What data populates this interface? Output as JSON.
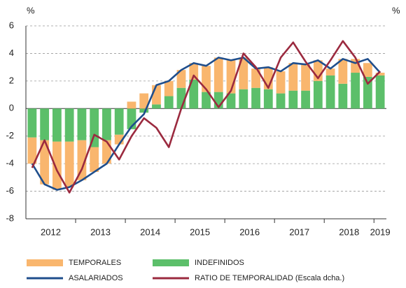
{
  "chart_data": {
    "type": "bar",
    "y_unit_label": "%",
    "y2_unit_label": "%",
    "categories": [
      "2012",
      null,
      null,
      null,
      "2013",
      null,
      null,
      null,
      "2014",
      null,
      null,
      null,
      "2015",
      null,
      null,
      null,
      "2016",
      null,
      null,
      null,
      "2017",
      null,
      null,
      null,
      "2018",
      null,
      null,
      null,
      "2019"
    ],
    "series": [
      {
        "name": "INDEFINIDOS",
        "type": "bar",
        "color": "#5cbf6a",
        "values": [
          -2.1,
          -2.3,
          -2.4,
          -2.4,
          -2.3,
          -2.8,
          -2.3,
          -1.9,
          -1.5,
          -0.3,
          0.3,
          0.9,
          1.5,
          2.1,
          1.2,
          1.2,
          1.1,
          1.4,
          1.5,
          1.4,
          1.1,
          1.3,
          1.3,
          2.0,
          2.4,
          1.8,
          2.6,
          2.3,
          2.4
        ]
      },
      {
        "name": "TEMPORALES",
        "type": "bar",
        "color": "#f9b66e",
        "values": [
          -1.9,
          -3.2,
          -3.5,
          -3.3,
          -2.9,
          -1.8,
          -1.7,
          -0.7,
          0.5,
          1.1,
          1.4,
          1.1,
          1.3,
          1.2,
          1.9,
          2.5,
          2.4,
          2.3,
          1.4,
          1.6,
          1.6,
          2.0,
          1.9,
          1.5,
          0.5,
          1.8,
          1.0,
          1.0,
          0.2
        ]
      },
      {
        "name": "ASALARIADOS",
        "type": "line",
        "color": "#1f4e8c",
        "values": [
          -4.0,
          -5.5,
          -5.9,
          -5.7,
          -5.2,
          -4.6,
          -4.0,
          -2.6,
          -1.3,
          -0.4,
          1.7,
          2.0,
          2.8,
          3.3,
          3.1,
          3.7,
          3.5,
          3.7,
          2.9,
          3.0,
          2.7,
          3.3,
          3.2,
          3.5,
          2.9,
          3.6,
          3.3,
          3.6,
          2.6
        ]
      },
      {
        "name": "RATIO DE TEMPORALIDAD (Escala dcha.)",
        "type": "line",
        "color": "#9b2a3f",
        "values": [
          -4.3,
          -2.3,
          -4.5,
          -6.1,
          -4.4,
          -1.9,
          -2.4,
          -3.7,
          -2.0,
          -0.7,
          -1.4,
          -2.8,
          0.0,
          2.4,
          1.4,
          0.1,
          1.3,
          4.0,
          3.0,
          1.5,
          3.7,
          4.8,
          3.4,
          2.2,
          3.5,
          4.9,
          3.7,
          1.8,
          2.7
        ]
      }
    ],
    "ylim": [
      -8,
      6
    ],
    "yticks": [
      -8,
      -6,
      -4,
      -2,
      0,
      2,
      4,
      6
    ],
    "grid": true
  }
}
